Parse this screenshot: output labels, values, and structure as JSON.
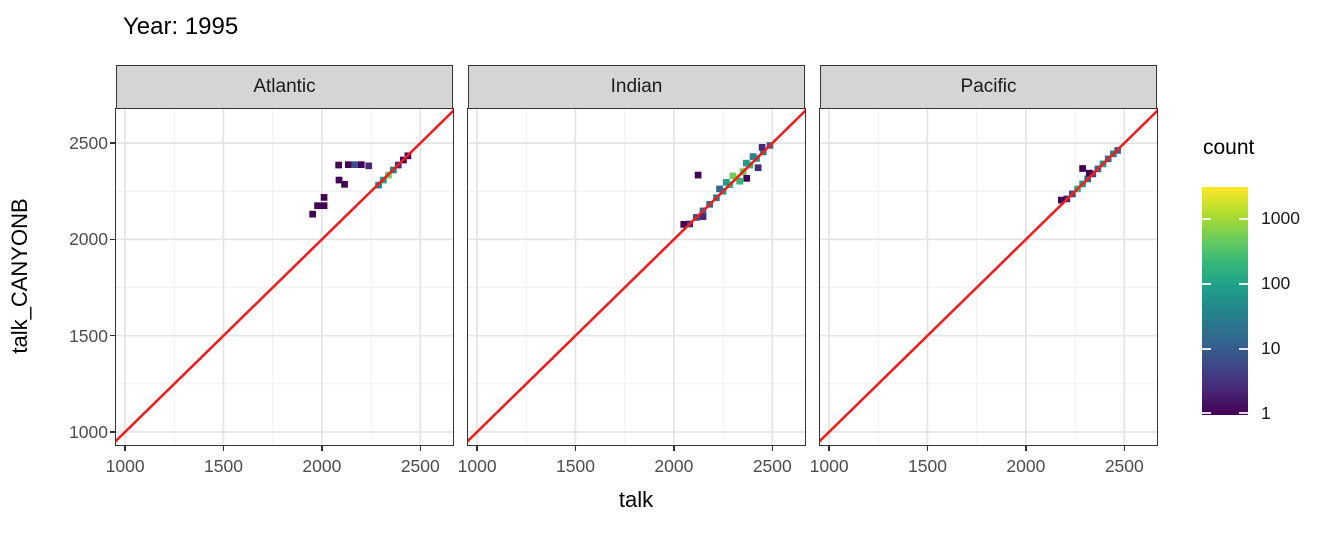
{
  "chart_data": {
    "type": "heatmap",
    "title": "Year: 1995",
    "xlabel": "talk",
    "ylabel": "talk_CANYONB",
    "facets": [
      "Atlantic",
      "Indian",
      "Pacific"
    ],
    "x_ticks": [
      1000,
      1500,
      2000,
      2500
    ],
    "y_ticks": [
      1000,
      1500,
      2000,
      2500
    ],
    "minor_ticks": [
      1250,
      1750,
      2250
    ],
    "xlim": [
      954,
      2666
    ],
    "ylim": [
      932.5,
      2677
    ],
    "bin_size": 34,
    "grid": {
      "major_color": "#e4e4e4",
      "minor_color": "#efefef",
      "major_width": 1.7,
      "minor_width": 0.9
    },
    "panel_style": {
      "background": "#ffffff",
      "border_color": "#333333",
      "strip_fill": "#d5d5d5",
      "strip_text_color": "#1a1a1a"
    },
    "reference_line": {
      "equation": "y = x",
      "color": "#ec2020",
      "width": 2.6
    },
    "legend": {
      "title": "count",
      "scale": "log10",
      "tick_values": [
        1000,
        100,
        10,
        1
      ],
      "range_max": 3000,
      "palette_top_to_bottom": [
        "#FDE725",
        "#B4DE2C",
        "#6DCD59",
        "#35B779",
        "#1F9E89",
        "#26828E",
        "#31688E",
        "#3E4A89",
        "#482878",
        "#440154"
      ]
    },
    "tiles": {
      "Atlantic": [
        [
          2288,
          2282,
          "#26828E"
        ],
        [
          2312,
          2308,
          "#1F9E89"
        ],
        [
          2338,
          2334,
          "#6DCD59"
        ],
        [
          2363,
          2360,
          "#26828E"
        ],
        [
          2388,
          2386,
          "#482878"
        ],
        [
          2414,
          2412,
          "#440154"
        ],
        [
          2437,
          2434,
          "#440154"
        ],
        [
          2085,
          2386,
          "#440154"
        ],
        [
          2134,
          2388,
          "#440154"
        ],
        [
          2166,
          2388,
          "#3E4A89"
        ],
        [
          2200,
          2388,
          "#440154"
        ],
        [
          2238,
          2382,
          "#482878"
        ],
        [
          2087,
          2308,
          "#440154"
        ],
        [
          2115,
          2286,
          "#440154"
        ],
        [
          2011,
          2218,
          "#440154"
        ],
        [
          1978,
          2175,
          "#440154"
        ],
        [
          2011,
          2175,
          "#440154"
        ],
        [
          1953,
          2131,
          "#440154"
        ]
      ],
      "Indian": [
        [
          2080,
          2080,
          "#482878"
        ],
        [
          2114,
          2114,
          "#3E4A89"
        ],
        [
          2148,
          2148,
          "#31688E"
        ],
        [
          2182,
          2182,
          "#31688E"
        ],
        [
          2216,
          2216,
          "#26828E"
        ],
        [
          2250,
          2250,
          "#1F9E89"
        ],
        [
          2284,
          2284,
          "#35B779"
        ],
        [
          2318,
          2318,
          "#FDE725"
        ],
        [
          2352,
          2352,
          "#6DCD59"
        ],
        [
          2386,
          2386,
          "#35B779"
        ],
        [
          2420,
          2420,
          "#1F9E89"
        ],
        [
          2454,
          2454,
          "#26828E"
        ],
        [
          2488,
          2488,
          "#31688E"
        ],
        [
          2050,
          2078,
          "#440154"
        ],
        [
          2148,
          2118,
          "#482878"
        ],
        [
          2232,
          2262,
          "#31688E"
        ],
        [
          2266,
          2296,
          "#1F9E89"
        ],
        [
          2300,
          2330,
          "#6DCD59"
        ],
        [
          2334,
          2302,
          "#35B779"
        ],
        [
          2368,
          2396,
          "#1F9E89"
        ],
        [
          2402,
          2430,
          "#26828E"
        ],
        [
          2123,
          2334,
          "#440154"
        ],
        [
          2370,
          2317,
          "#440154"
        ],
        [
          2428,
          2372,
          "#482878"
        ],
        [
          2448,
          2478,
          "#482878"
        ]
      ],
      "Pacific": [
        [
          2208,
          2210,
          "#482878"
        ],
        [
          2236,
          2236,
          "#3E4A89"
        ],
        [
          2262,
          2262,
          "#35B779"
        ],
        [
          2288,
          2288,
          "#1F9E89"
        ],
        [
          2314,
          2314,
          "#31688E"
        ],
        [
          2340,
          2340,
          "#3E4A89"
        ],
        [
          2366,
          2366,
          "#31688E"
        ],
        [
          2392,
          2392,
          "#1F9E89"
        ],
        [
          2418,
          2418,
          "#31688E"
        ],
        [
          2444,
          2444,
          "#26828E"
        ],
        [
          2466,
          2462,
          "#31688E"
        ],
        [
          2288,
          2368,
          "#440154"
        ],
        [
          2322,
          2344,
          "#440154"
        ],
        [
          2180,
          2204,
          "#440154"
        ]
      ]
    }
  }
}
